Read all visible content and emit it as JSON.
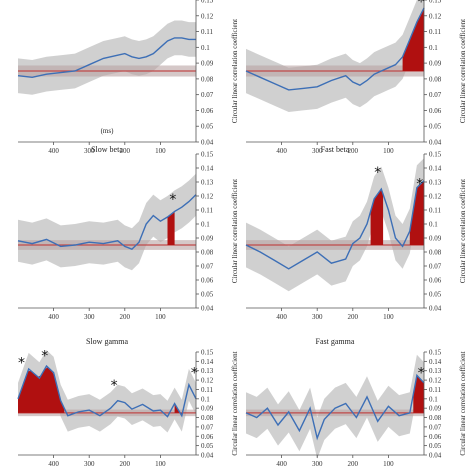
{
  "figure": {
    "x_tick_labels": [
      "400",
      "300",
      "200",
      "100"
    ],
    "x_axis_label": "(ms)",
    "y_tick_labels": [
      "0.04",
      "0.05",
      "0.06",
      "0.07",
      "0.08",
      "0.09",
      "0.1",
      "0.11",
      "0.12",
      "0.13",
      "0.14",
      "0.15"
    ],
    "y_axis_label": "Circular linear correlation coefficient",
    "colors": {
      "mean_line": "#3d6fb6",
      "confidence_band": "#c8c8c8",
      "baseline": "#c04a4a",
      "significant_fill": "#b01010"
    }
  },
  "chart_data": [
    {
      "type": "line",
      "title": "",
      "xlabel": "(ms)",
      "ylabel": "Circular linear correlation coefficient",
      "xlim": [
        500,
        0
      ],
      "ylim": [
        0.04,
        0.13
      ],
      "x_ticks": [
        400,
        300,
        200,
        100
      ],
      "annotations": [],
      "x": [
        500,
        460,
        420,
        380,
        340,
        300,
        260,
        220,
        200,
        180,
        160,
        140,
        120,
        100,
        80,
        60,
        40,
        20,
        0
      ],
      "mean": [
        0.082,
        0.081,
        0.083,
        0.084,
        0.085,
        0.089,
        0.093,
        0.095,
        0.096,
        0.094,
        0.093,
        0.094,
        0.096,
        0.1,
        0.104,
        0.106,
        0.106,
        0.105,
        0.105
      ],
      "band_half_width": 0.011,
      "baseline": 0.085,
      "significant": []
    },
    {
      "type": "line",
      "title": "",
      "xlabel": "",
      "ylabel": "Circular linear correlation coefficient",
      "xlim": [
        500,
        0
      ],
      "ylim": [
        0.04,
        0.13
      ],
      "x_ticks": [
        400,
        300,
        200,
        100
      ],
      "annotations": [
        "*"
      ],
      "x": [
        500,
        460,
        420,
        380,
        340,
        300,
        260,
        220,
        200,
        180,
        160,
        140,
        120,
        100,
        80,
        60,
        40,
        20,
        0
      ],
      "mean": [
        0.085,
        0.081,
        0.077,
        0.073,
        0.074,
        0.075,
        0.079,
        0.082,
        0.078,
        0.076,
        0.079,
        0.083,
        0.085,
        0.087,
        0.089,
        0.094,
        0.105,
        0.116,
        0.125
      ],
      "band_half_width": 0.014,
      "baseline": 0.085,
      "significant": [
        [
          60,
          0
        ]
      ]
    },
    {
      "type": "line",
      "title": "Slow beta",
      "xlabel": "",
      "ylabel": "Circular linear correlation coefficient",
      "xlim": [
        500,
        0
      ],
      "ylim": [
        0.04,
        0.15
      ],
      "x_ticks": [
        400,
        300,
        200,
        100
      ],
      "annotations": [
        "*"
      ],
      "x": [
        500,
        460,
        420,
        380,
        340,
        300,
        260,
        220,
        200,
        180,
        160,
        140,
        120,
        100,
        80,
        60,
        40,
        20,
        0
      ],
      "mean": [
        0.088,
        0.086,
        0.089,
        0.084,
        0.085,
        0.087,
        0.086,
        0.088,
        0.084,
        0.082,
        0.087,
        0.1,
        0.106,
        0.102,
        0.105,
        0.109,
        0.112,
        0.116,
        0.121
      ],
      "band_half_width": 0.015,
      "baseline": 0.085,
      "significant": [
        [
          80,
          60
        ]
      ]
    },
    {
      "type": "line",
      "title": "Fast beta",
      "xlabel": "",
      "ylabel": "Circular linear correlation coefficient",
      "xlim": [
        500,
        0
      ],
      "ylim": [
        0.04,
        0.15
      ],
      "x_ticks": [
        400,
        300,
        200,
        100
      ],
      "annotations": [
        "*",
        "*"
      ],
      "x": [
        500,
        460,
        420,
        380,
        340,
        300,
        260,
        220,
        200,
        180,
        160,
        140,
        120,
        100,
        80,
        60,
        40,
        20,
        0
      ],
      "mean": [
        0.085,
        0.08,
        0.074,
        0.068,
        0.074,
        0.08,
        0.072,
        0.075,
        0.086,
        0.09,
        0.1,
        0.118,
        0.125,
        0.11,
        0.09,
        0.084,
        0.095,
        0.126,
        0.131
      ],
      "band_half_width": 0.016,
      "baseline": 0.085,
      "significant": [
        [
          150,
          115
        ],
        [
          40,
          0
        ]
      ]
    },
    {
      "type": "line",
      "title": "Slow gamma",
      "xlabel": "",
      "ylabel": "Circular linear correlation coefficient",
      "xlim": [
        500,
        0
      ],
      "ylim": [
        0.04,
        0.15
      ],
      "x_ticks": [
        400,
        300,
        200,
        100
      ],
      "annotations": [
        "*",
        "*",
        "*",
        "*"
      ],
      "x": [
        500,
        470,
        440,
        420,
        400,
        380,
        360,
        330,
        300,
        270,
        240,
        220,
        200,
        180,
        150,
        120,
        100,
        80,
        60,
        40,
        20,
        0
      ],
      "mean": [
        0.1,
        0.132,
        0.122,
        0.135,
        0.128,
        0.098,
        0.082,
        0.086,
        0.088,
        0.082,
        0.09,
        0.098,
        0.096,
        0.089,
        0.094,
        0.087,
        0.088,
        0.081,
        0.095,
        0.082,
        0.115,
        0.1
      ],
      "band_half_width": 0.017,
      "baseline": 0.085,
      "significant": [
        [
          500,
          370
        ],
        [
          60,
          40
        ]
      ]
    },
    {
      "type": "line",
      "title": "Fast gamma",
      "xlabel": "",
      "ylabel": "Circular linear correlation coefficient",
      "xlim": [
        500,
        0
      ],
      "ylim": [
        0.04,
        0.15
      ],
      "x_ticks": [
        400,
        300,
        200,
        100
      ],
      "annotations": [
        "*"
      ],
      "x": [
        500,
        470,
        440,
        410,
        380,
        350,
        320,
        300,
        280,
        250,
        220,
        190,
        160,
        130,
        100,
        70,
        40,
        20,
        0
      ],
      "mean": [
        0.085,
        0.08,
        0.09,
        0.072,
        0.086,
        0.066,
        0.09,
        0.058,
        0.078,
        0.09,
        0.095,
        0.08,
        0.102,
        0.076,
        0.092,
        0.082,
        0.085,
        0.125,
        0.117
      ],
      "band_half_width": 0.022,
      "baseline": 0.085,
      "significant": [
        [
          30,
          0
        ]
      ]
    }
  ]
}
